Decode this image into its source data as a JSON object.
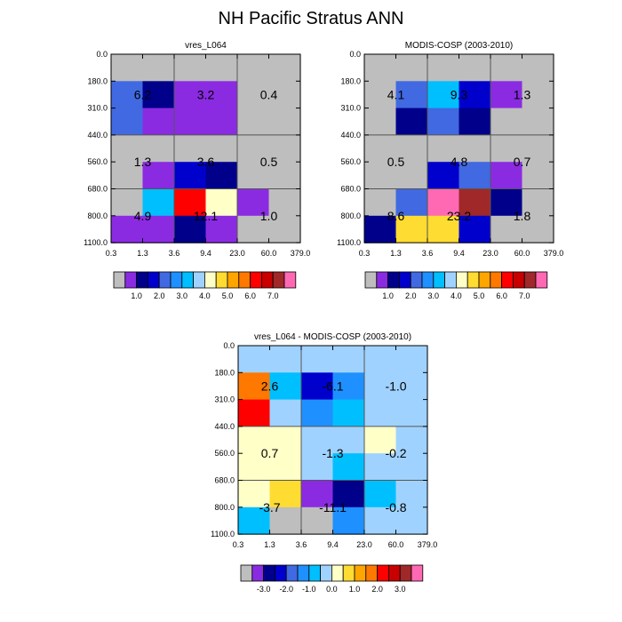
{
  "title": "NH Pacific Stratus ANN",
  "tau_labels": [
    "0.3",
    "1.3",
    "3.6",
    "9.4",
    "23.0",
    "60.0",
    "379.0"
  ],
  "ctp_labels": [
    "0.0",
    "180.0",
    "310.0",
    "440.0",
    "560.0",
    "680.0",
    "800.0",
    "1100.0"
  ],
  "colorbars": {
    "main": {
      "colors": [
        "#bebebe",
        "#8a2be2",
        "#00008b",
        "#0000cd",
        "#4169e1",
        "#1e90ff",
        "#00bfff",
        "#a0d2ff",
        "#ffffc8",
        "#ffdc32",
        "#ffa500",
        "#ff7800",
        "#ff0000",
        "#c80000",
        "#a02828",
        "#ff69b4"
      ],
      "labels": [
        "1.0",
        "2.0",
        "3.0",
        "4.0",
        "5.0",
        "6.0",
        "7.0"
      ]
    },
    "diff": {
      "colors": [
        "#bebebe",
        "#8a2be2",
        "#00008b",
        "#0000cd",
        "#4169e1",
        "#1e90ff",
        "#00bfff",
        "#a0d2ff",
        "#ffffc8",
        "#ffdc32",
        "#ffa500",
        "#ff7800",
        "#ff0000",
        "#c80000",
        "#a02828",
        "#ff69b4"
      ],
      "labels": [
        "-3.0",
        "-2.0",
        "-1.0",
        "0.0",
        "1.0",
        "2.0",
        "3.0"
      ]
    }
  },
  "chart_data": [
    {
      "type": "heatmap",
      "title": "vres_L064",
      "colorbar": "main",
      "cells": [
        [
          "#bebebe",
          "#bebebe",
          "#bebebe",
          "#bebebe",
          "#bebebe",
          "#bebebe"
        ],
        [
          "#4169e1",
          "#00008b",
          "#8a2be2",
          "#8a2be2",
          "#bebebe",
          "#bebebe"
        ],
        [
          "#4169e1",
          "#8a2be2",
          "#8a2be2",
          "#8a2be2",
          "#bebebe",
          "#bebebe"
        ],
        [
          "#bebebe",
          "#bebebe",
          "#bebebe",
          "#bebebe",
          "#bebebe",
          "#bebebe"
        ],
        [
          "#bebebe",
          "#8a2be2",
          "#0000cd",
          "#00008b",
          "#bebebe",
          "#bebebe"
        ],
        [
          "#bebebe",
          "#00bfff",
          "#ff0000",
          "#ffffc8",
          "#8a2be2",
          "#bebebe"
        ],
        [
          "#8a2be2",
          "#8a2be2",
          "#00008b",
          "#8a2be2",
          "#bebebe",
          "#bebebe"
        ]
      ],
      "box_values": [
        "6.2",
        "3.2",
        "0.4",
        "1.3",
        "3.6",
        "0.5",
        "4.9",
        "12.1",
        "1.0"
      ]
    },
    {
      "type": "heatmap",
      "title": "MODIS-COSP (2003-2010)",
      "colorbar": "main",
      "cells": [
        [
          "#bebebe",
          "#bebebe",
          "#bebebe",
          "#bebebe",
          "#bebebe",
          "#bebebe"
        ],
        [
          "#bebebe",
          "#4169e1",
          "#00bfff",
          "#0000cd",
          "#8a2be2",
          "#bebebe"
        ],
        [
          "#bebebe",
          "#00008b",
          "#4169e1",
          "#00008b",
          "#bebebe",
          "#bebebe"
        ],
        [
          "#bebebe",
          "#bebebe",
          "#bebebe",
          "#bebebe",
          "#bebebe",
          "#bebebe"
        ],
        [
          "#bebebe",
          "#bebebe",
          "#0000cd",
          "#4169e1",
          "#8a2be2",
          "#bebebe"
        ],
        [
          "#bebebe",
          "#4169e1",
          "#ff69b4",
          "#a02828",
          "#00008b",
          "#bebebe"
        ],
        [
          "#00008b",
          "#ffdc32",
          "#ffdc32",
          "#0000cd",
          "#bebebe",
          "#bebebe"
        ]
      ],
      "box_values": [
        "4.1",
        "9.3",
        "1.3",
        "0.5",
        "4.8",
        "0.7",
        "8.6",
        "23.2",
        "1.8"
      ]
    },
    {
      "type": "heatmap",
      "title": "vres_L064 - MODIS-COSP (2003-2010)",
      "colorbar": "diff",
      "cells": [
        [
          "#a0d2ff",
          "#a0d2ff",
          "#a0d2ff",
          "#a0d2ff",
          "#a0d2ff",
          "#a0d2ff"
        ],
        [
          "#ff7800",
          "#00bfff",
          "#0000cd",
          "#1e90ff",
          "#a0d2ff",
          "#a0d2ff"
        ],
        [
          "#ff0000",
          "#a0d2ff",
          "#1e90ff",
          "#00bfff",
          "#a0d2ff",
          "#a0d2ff"
        ],
        [
          "#ffffc8",
          "#ffffc8",
          "#a0d2ff",
          "#a0d2ff",
          "#ffffc8",
          "#a0d2ff"
        ],
        [
          "#ffffc8",
          "#ffffc8",
          "#a0d2ff",
          "#00bfff",
          "#a0d2ff",
          "#a0d2ff"
        ],
        [
          "#ffffc8",
          "#ffdc32",
          "#8a2be2",
          "#00008b",
          "#00bfff",
          "#a0d2ff"
        ],
        [
          "#00bfff",
          "#bebebe",
          "#bebebe",
          "#1e90ff",
          "#a0d2ff",
          "#a0d2ff"
        ]
      ],
      "box_values": [
        "2.6",
        "-6.1",
        "-1.0",
        "0.7",
        "-1.3",
        "-0.2",
        "-3.7",
        "-11.1",
        "-0.8"
      ]
    }
  ]
}
